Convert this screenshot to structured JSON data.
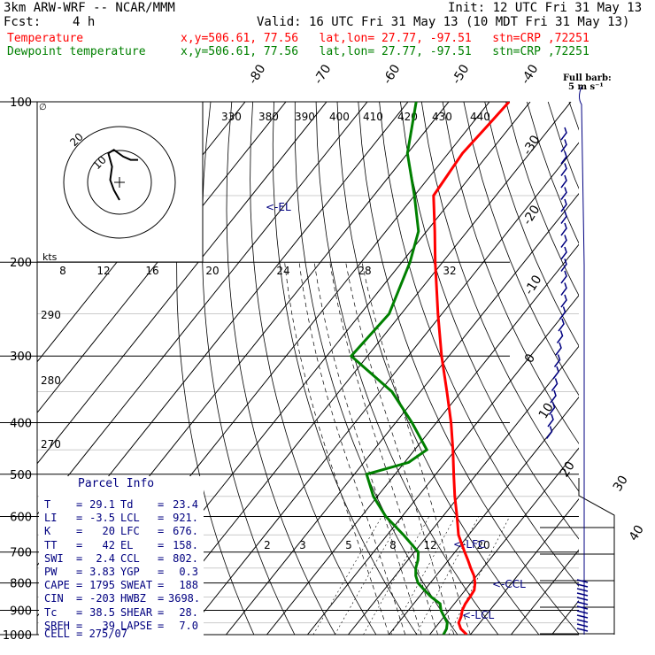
{
  "header": {
    "model": "3km ARW-WRF -- NCAR/MMM",
    "init": "Init: 12 UTC Fri 31 May 13",
    "fcst_label": "Fcst:",
    "fcst_value": "4 h",
    "valid": "Valid: 16 UTC Fri 31 May 13 (10 MDT Fri 31 May 13)",
    "rows": [
      {
        "name": "Temperature",
        "info": "x,y=506.61, 77.56   lat,lon= 27.77, -97.51   stn=CRP ,72251",
        "color": "#ff0000"
      },
      {
        "name": "Dewpoint temperature",
        "info": "x,y=506.61, 77.56   lat,lon= 27.77, -97.51   stn=CRP ,72251",
        "color": "#008000"
      }
    ]
  },
  "barb_note": {
    "line1": "Full barb:",
    "line2": "5 m s⁻¹"
  },
  "parcel_info": {
    "title": "Parcel Info",
    "rows": [
      {
        "l1": "T",
        "v1": "29.1",
        "l2": "Td",
        "v2": "23.4"
      },
      {
        "l1": "LI",
        "v1": "-3.5",
        "l2": "LCL",
        "v2": "921."
      },
      {
        "l1": "K",
        "v1": "20",
        "l2": "LFC",
        "v2": "676."
      },
      {
        "l1": "TT",
        "v1": "42",
        "l2": "EL",
        "v2": "158."
      },
      {
        "l1": "SWI",
        "v1": "2.4",
        "l2": "CCL",
        "v2": "802."
      },
      {
        "l1": "PW",
        "v1": "3.83",
        "l2": "YGP",
        "v2": "0.3"
      },
      {
        "l1": "CAPE",
        "v1": "1795",
        "l2": "SWEAT",
        "v2": "188"
      },
      {
        "l1": "CIN",
        "v1": "-203",
        "l2": "HWBZ",
        "v2": "3698."
      },
      {
        "l1": "Tc",
        "v1": "38.5",
        "l2": "SHEAR",
        "v2": "28."
      },
      {
        "l1": "SREH",
        "v1": "39",
        "l2": "LAPSE",
        "v2": "7.0"
      }
    ],
    "cell": "CELL = 275/07"
  },
  "chart_data": {
    "type": "skew-t",
    "y_scale": "log-pressure",
    "pressure_levels": [
      100,
      200,
      300,
      400,
      500,
      600,
      700,
      800,
      900,
      1000
    ],
    "skewed_isotherm_labels": [
      "-80",
      "-70",
      "-60",
      "-50",
      "-40",
      "-30",
      "-20",
      "-10",
      "0",
      "10",
      "20",
      "30",
      "40"
    ],
    "theta_labels": [
      "330",
      "380",
      "390",
      "400",
      "410",
      "420",
      "430",
      "440"
    ],
    "hodograph_speed_labels": [
      "8",
      "12",
      "16",
      "20",
      "24",
      "28",
      "32"
    ],
    "hodograph_unit": "kts",
    "hodograph_ring_labels": [
      "20",
      "10"
    ],
    "theta_e_labels": [
      "290",
      "280",
      "270"
    ],
    "mixing_ratio_labels": [
      "2",
      "3",
      "5",
      "8",
      "12",
      "20"
    ],
    "level_markers": [
      "EL",
      "LFC",
      "CCL",
      "LCL"
    ],
    "series": [
      {
        "name": "Temperature",
        "color": "#ff0000",
        "points": [
          [
            1000,
            29.1
          ],
          [
            975,
            26.5
          ],
          [
            950,
            24.8
          ],
          [
            925,
            24.2
          ],
          [
            900,
            23.2
          ],
          [
            875,
            22.7
          ],
          [
            850,
            22.5
          ],
          [
            825,
            22.2
          ],
          [
            800,
            21.0
          ],
          [
            775,
            19.3
          ],
          [
            750,
            17.0
          ],
          [
            725,
            14.8
          ],
          [
            700,
            12.4
          ],
          [
            650,
            7.5
          ],
          [
            600,
            3.5
          ],
          [
            550,
            -1.0
          ],
          [
            500,
            -5.6
          ],
          [
            450,
            -10.6
          ],
          [
            400,
            -16.4
          ],
          [
            350,
            -23.5
          ],
          [
            300,
            -31.8
          ],
          [
            250,
            -41.0
          ],
          [
            200,
            -51.8
          ],
          [
            175,
            -58.0
          ],
          [
            150,
            -65.3
          ],
          [
            125,
            -66.5
          ],
          [
            110,
            -65.7
          ],
          [
            100,
            -65.2
          ]
        ]
      },
      {
        "name": "Dewpoint temperature",
        "color": "#008000",
        "points": [
          [
            1000,
            23.4
          ],
          [
            975,
            23.0
          ],
          [
            950,
            22.0
          ],
          [
            925,
            20.0
          ],
          [
            900,
            18.0
          ],
          [
            875,
            16.5
          ],
          [
            850,
            13.0
          ],
          [
            825,
            10.0
          ],
          [
            800,
            7.0
          ],
          [
            775,
            5.0
          ],
          [
            750,
            3.5
          ],
          [
            725,
            2.5
          ],
          [
            700,
            1.0
          ],
          [
            650,
            -6.0
          ],
          [
            600,
            -14.0
          ],
          [
            550,
            -21.0
          ],
          [
            500,
            -27.0
          ],
          [
            475,
            -19.0
          ],
          [
            450,
            -17.0
          ],
          [
            400,
            -26.0
          ],
          [
            350,
            -37.0
          ],
          [
            300,
            -54.0
          ],
          [
            250,
            -53.0
          ],
          [
            200,
            -58.0
          ],
          [
            175,
            -62.0
          ],
          [
            150,
            -70.0
          ],
          [
            125,
            -80.0
          ],
          [
            100,
            -88.0
          ]
        ]
      }
    ],
    "hodograph": [
      [
        0,
        0
      ],
      [
        -3,
        6
      ],
      [
        -5,
        12
      ],
      [
        -4,
        20
      ],
      [
        -6,
        28
      ],
      [
        -3,
        30
      ],
      [
        2,
        26
      ],
      [
        6,
        24
      ],
      [
        10,
        24
      ]
    ]
  }
}
